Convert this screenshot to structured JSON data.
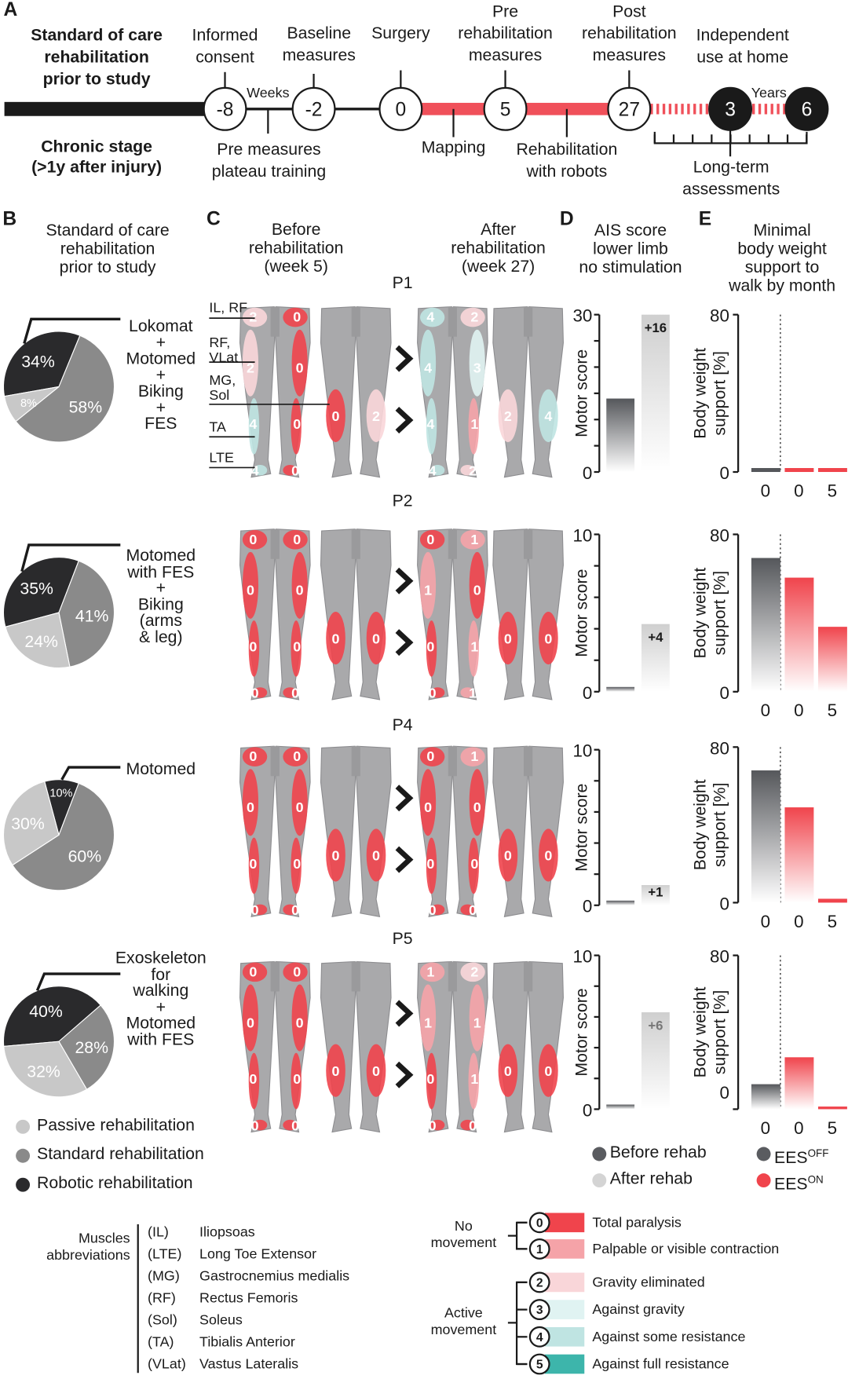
{
  "panel_labels": {
    "a": "A",
    "b": "B",
    "c": "C",
    "d": "D",
    "e": "E"
  },
  "timeline": {
    "left_top": "Standard of care\nrehabilitation\nprior to study",
    "left_bottom": "Chronic stage\n(>1y after injury)",
    "milestones": [
      {
        "value": "-8",
        "label": "Informed\nconsent",
        "filled": false
      },
      {
        "value": "-2",
        "label": "Baseline\nmeasures",
        "filled": false
      },
      {
        "value": "0",
        "label": "Surgery",
        "filled": false
      },
      {
        "value": "5",
        "label": "Pre\nrehabilitation\nmeasures",
        "filled": false
      },
      {
        "value": "27",
        "label": "Post\nrehabilitation\nmeasures",
        "filled": false
      },
      {
        "value": "3",
        "label": "Independent\nuse at home",
        "filled": true
      },
      {
        "value": "6",
        "label": "",
        "filled": true
      }
    ],
    "weeks": "Weeks",
    "years": "Years",
    "pre_measures": "Pre measures\nplateau training",
    "mapping": "Mapping",
    "rehab_robots": "Rehabilitation\nwith robots",
    "long_term": "Long-term\nassessments",
    "colors": {
      "chronic": "#1a1a1a",
      "rehab": "#f0505a"
    }
  },
  "panel_b": {
    "title": "Standard of care\nrehabilitation\nprior to study",
    "legend": [
      {
        "label": "Passive rehabilitation",
        "color": "#c8c8c8"
      },
      {
        "label": "Standard rehabilitation",
        "color": "#8a8a8a"
      },
      {
        "label": "Robotic rehabilitation",
        "color": "#2a2a2c"
      }
    ]
  },
  "panel_c": {
    "before_title": "Before\nrehabilitation\n(week 5)",
    "after_title": "After\nrehabilitation\n(week 27)",
    "muscle_labels": [
      "IL, RF",
      "RF,\nVLat",
      "MG,\nSol",
      "TA",
      "LTE"
    ]
  },
  "panel_d": {
    "title": "AIS score\nlower limb\nno stimulation",
    "ylabel": "Motor score",
    "legend": [
      {
        "label": "Before rehab",
        "color": "#5a5c60"
      },
      {
        "label": "After rehab",
        "color": "#d4d4d4"
      }
    ]
  },
  "panel_e": {
    "title": "Minimal\nbody weight\nsupport to\nwalk by month",
    "ylabel": "Body weight\nsupport [%]",
    "x_ticks": [
      "0",
      "0",
      "5"
    ],
    "legend": [
      {
        "label": "EES",
        "sup": "OFF",
        "color": "#5a5c60"
      },
      {
        "label": "EES",
        "sup": "ON",
        "color": "#f0444c"
      }
    ]
  },
  "patients": [
    {
      "id": "P1",
      "pie": [
        34,
        58,
        8
      ],
      "pie_labels": [
        "34%",
        "58%",
        "8%"
      ],
      "rehab": "Lokomat\n+\nMotomed\n+\nBiking\n+\nFES",
      "before": {
        "front": {
          "left": [
            2,
            2,
            4,
            4
          ],
          "right": [
            0,
            0,
            0,
            0
          ]
        },
        "back": [
          0,
          2
        ]
      },
      "after": {
        "front": {
          "left": [
            4,
            4,
            4,
            4
          ],
          "right": [
            2,
            3,
            1,
            2
          ]
        },
        "back": [
          2,
          4
        ]
      },
      "ais": {
        "ymax": 30,
        "ticks": 6,
        "before": 14,
        "after": 30,
        "delta": "+16"
      },
      "bws": {
        "ymax": 80,
        "ees_off_m0": 2,
        "ees_on_m0": 2,
        "ees_on_m5": 2
      }
    },
    {
      "id": "P2",
      "pie": [
        35,
        41,
        24
      ],
      "pie_labels": [
        "35%",
        "41%",
        "24%"
      ],
      "rehab": "Motomed\nwith FES\n+\nBiking\n(arms\n& leg)",
      "before": {
        "front": {
          "left": [
            0,
            0,
            0,
            0
          ],
          "right": [
            0,
            0,
            0,
            0
          ]
        },
        "back": [
          0,
          0
        ]
      },
      "after": {
        "front": {
          "left": [
            0,
            1,
            0,
            0
          ],
          "right": [
            1,
            0,
            1,
            1
          ]
        },
        "back": [
          0,
          0
        ]
      },
      "ais": {
        "ymax": 10,
        "ticks": 5,
        "before": 0.3,
        "after": 4.3,
        "delta": "+4"
      },
      "bws": {
        "ymax": 80,
        "ees_off_m0": 68,
        "ees_on_m0": 58,
        "ees_on_m5": 33
      }
    },
    {
      "id": "P4",
      "pie": [
        10,
        60,
        30
      ],
      "pie_labels": [
        "10%",
        "60%",
        "30%"
      ],
      "rehab": "Motomed",
      "before": {
        "front": {
          "left": [
            0,
            0,
            0,
            0
          ],
          "right": [
            0,
            0,
            0,
            0
          ]
        },
        "back": [
          0,
          0
        ]
      },
      "after": {
        "front": {
          "left": [
            0,
            0,
            0,
            0
          ],
          "right": [
            1,
            0,
            0,
            0
          ]
        },
        "back": [
          0,
          0
        ]
      },
      "ais": {
        "ymax": 10,
        "ticks": 5,
        "before": 0.3,
        "after": 1.3,
        "delta": "+1"
      },
      "bws": {
        "ymax": 80,
        "ees_off_m0": 68,
        "ees_on_m0": 49,
        "ees_on_m5": 2
      }
    },
    {
      "id": "P5",
      "pie": [
        40,
        28,
        32
      ],
      "pie_labels": [
        "40%",
        "28%",
        "32%"
      ],
      "rehab": "Exoskeleton\nfor\nwalking\n+\nMotomed\nwith FES",
      "before": {
        "front": {
          "left": [
            0,
            0,
            0,
            0
          ],
          "right": [
            0,
            0,
            0,
            0
          ]
        },
        "back": [
          0,
          0
        ]
      },
      "after": {
        "front": {
          "left": [
            1,
            1,
            0,
            0
          ],
          "right": [
            2,
            1,
            1,
            0
          ]
        },
        "back": [
          0,
          0
        ]
      },
      "ais": {
        "ymax": 10,
        "ticks": 5,
        "before": 0.3,
        "after": 6.3,
        "delta": "+6"
      },
      "bws": {
        "ymax": 80,
        "ees_off_m0": 13,
        "ees_on_m0": 27,
        "ees_on_m5": 1
      }
    }
  ],
  "muscles": {
    "title": "Muscles\nabbreviations",
    "items": [
      {
        "abbr": "(IL)",
        "name": "Iliopsoas"
      },
      {
        "abbr": "(LTE)",
        "name": "Long Toe Extensor"
      },
      {
        "abbr": "(MG)",
        "name": "Gastrocnemius medialis"
      },
      {
        "abbr": "(RF)",
        "name": "Rectus Femoris"
      },
      {
        "abbr": "(Sol)",
        "name": "Soleus"
      },
      {
        "abbr": "(TA)",
        "name": "Tibialis Anterior"
      },
      {
        "abbr": "(VLat)",
        "name": "Vastus Lateralis"
      }
    ]
  },
  "mrc": {
    "no_movement": "No\nmovement",
    "active_movement": "Active\nmovement",
    "grades": [
      {
        "score": "0",
        "label": "Total paralysis",
        "color": "#f0444c"
      },
      {
        "score": "1",
        "label": "Palpable or visible contraction",
        "color": "#f5a3a8"
      },
      {
        "score": "2",
        "label": "Gravity eliminated",
        "color": "#f9d6d9"
      },
      {
        "score": "3",
        "label": "Against gravity",
        "color": "#e0f3f2"
      },
      {
        "score": "4",
        "label": "Against some resistance",
        "color": "#bfe4e2"
      },
      {
        "score": "5",
        "label": "Against full resistance",
        "color": "#3db5ab"
      }
    ]
  }
}
